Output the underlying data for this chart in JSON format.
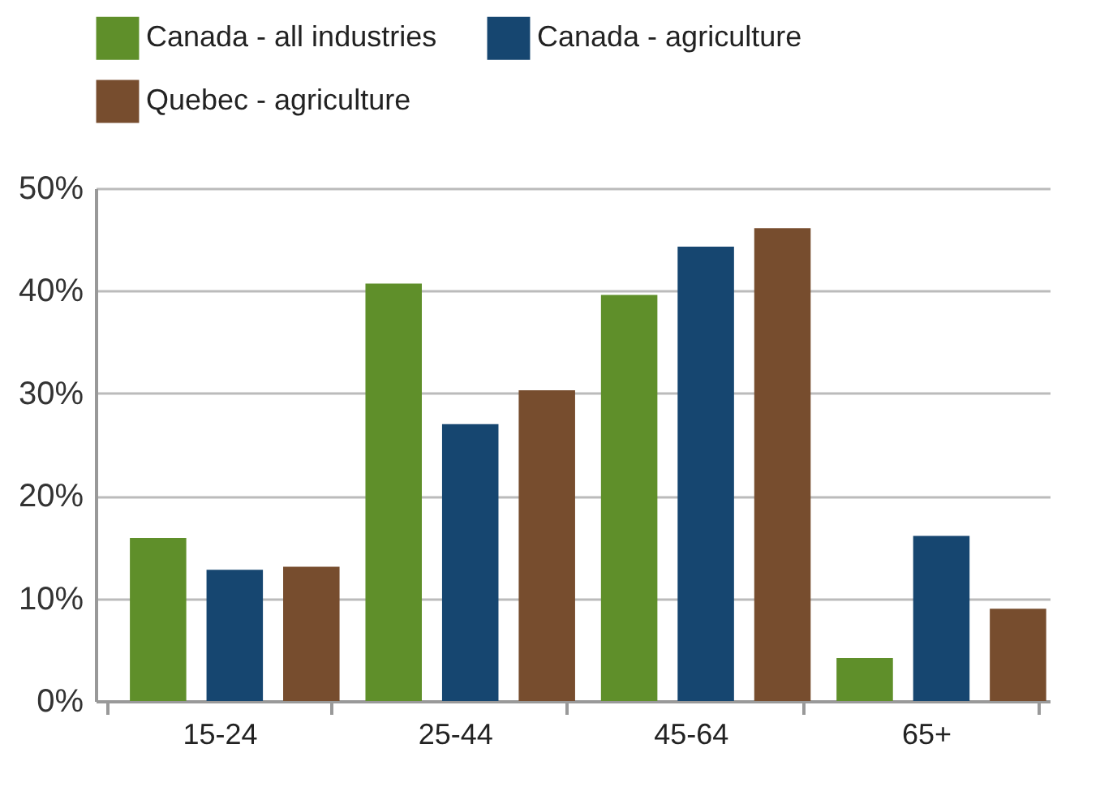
{
  "chart_data": {
    "type": "bar",
    "categories": [
      "15-24",
      "25-44",
      "45-64",
      "65+"
    ],
    "series": [
      {
        "name": "Canada - all industries",
        "color": "#5f8f2a",
        "values": [
          15.9,
          40.7,
          39.6,
          4.2
        ]
      },
      {
        "name": "Canada - agriculture",
        "color": "#164670",
        "values": [
          12.8,
          27.0,
          44.3,
          16.1
        ]
      },
      {
        "name": "Quebec - agriculture",
        "color": "#774d2e",
        "values": [
          13.1,
          30.3,
          46.1,
          9.0
        ]
      }
    ],
    "ylim": [
      0,
      50
    ],
    "yticks": [
      {
        "value": 0,
        "label": "0%"
      },
      {
        "value": 10,
        "label": "10%"
      },
      {
        "value": 20,
        "label": "20%"
      },
      {
        "value": 30,
        "label": "30%"
      },
      {
        "value": 40,
        "label": "40%"
      },
      {
        "value": 50,
        "label": "50%"
      }
    ],
    "grid": "y",
    "legend": "top"
  }
}
